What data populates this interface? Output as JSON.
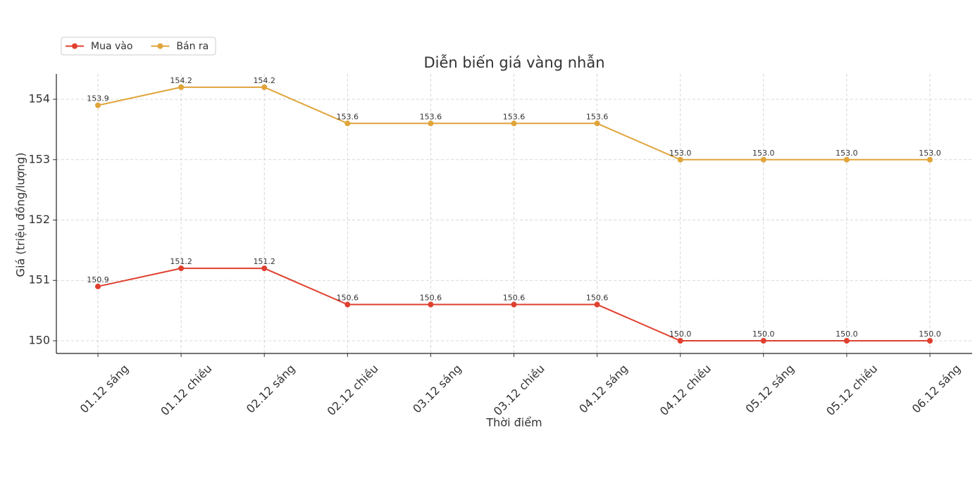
{
  "chart_data": {
    "type": "line",
    "title": "Diễn biến giá vàng nhẫn",
    "x_label": "Thời điểm",
    "y_label": "Giá (triệu đồng/lượng)",
    "categories": [
      "01.12 sáng",
      "01.12 chiều",
      "02.12 sáng",
      "02.12 chiều",
      "03.12 sáng",
      "03.12 chiều",
      "04.12 sáng",
      "04.12 chiều",
      "05.12 sáng",
      "05.12 chiều",
      "06.12 sáng"
    ],
    "series": [
      {
        "name": "Mua vào",
        "color": "#e0402f",
        "values": [
          150.9,
          151.2,
          151.2,
          150.6,
          150.6,
          150.6,
          150.6,
          150,
          150,
          150,
          150
        ],
        "value_labels": [
          "150.9",
          "151.2",
          "151.2",
          "150.6",
          "150.6",
          "150.6",
          "150.6",
          "150.0",
          "150.0",
          "150.0",
          "150.0"
        ]
      },
      {
        "name": "Bán ra",
        "color": "#e0a43a",
        "values": [
          153.9,
          154.2,
          154.2,
          153.6,
          153.6,
          153.6,
          153.6,
          153,
          153,
          153,
          153
        ],
        "value_labels": [
          "153.9",
          "154.2",
          "154.2",
          "153.6",
          "153.6",
          "153.6",
          "153.6",
          "153.0",
          "153.0",
          "153.0",
          "153.0"
        ]
      }
    ],
    "ylim": [
      149.79,
      154.42
    ],
    "yticks": [
      150,
      151,
      152,
      153,
      154
    ],
    "grid": true,
    "legend": "upper left"
  }
}
